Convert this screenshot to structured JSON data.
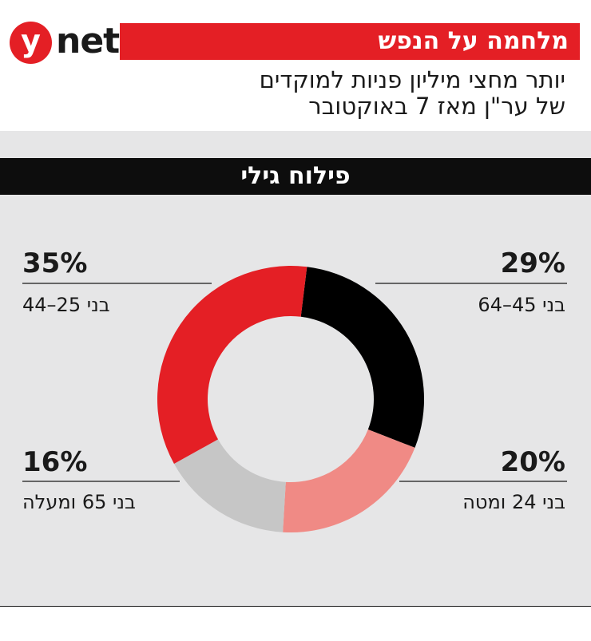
{
  "brand": {
    "mark": "y",
    "word": "net"
  },
  "series_title": "מלחמה על הנפש",
  "subtitle_lines": [
    "יותר מחצי מיליון פניות למוקדים",
    "של ער\"ן מאז 7 באוקטובר"
  ],
  "section_title": "פילוח גילי",
  "colors": {
    "accent": "#e41f25",
    "black": "#000000",
    "pink": "#f08a85",
    "gray": "#c6c6c6"
  },
  "chart_data": {
    "type": "pie",
    "variant": "donut",
    "slices": [
      {
        "label": "בני 45–64",
        "pct_label": "29%",
        "value": 29,
        "color": "#000000"
      },
      {
        "label": "בני 24 ומטה",
        "pct_label": "20%",
        "value": 20,
        "color": "#f08a85"
      },
      {
        "label": "בני 65 ומעלה",
        "pct_label": "16%",
        "value": 16,
        "color": "#c6c6c6"
      },
      {
        "label": "בני 25–44",
        "pct_label": "35%",
        "value": 35,
        "color": "#e41f25"
      }
    ]
  }
}
